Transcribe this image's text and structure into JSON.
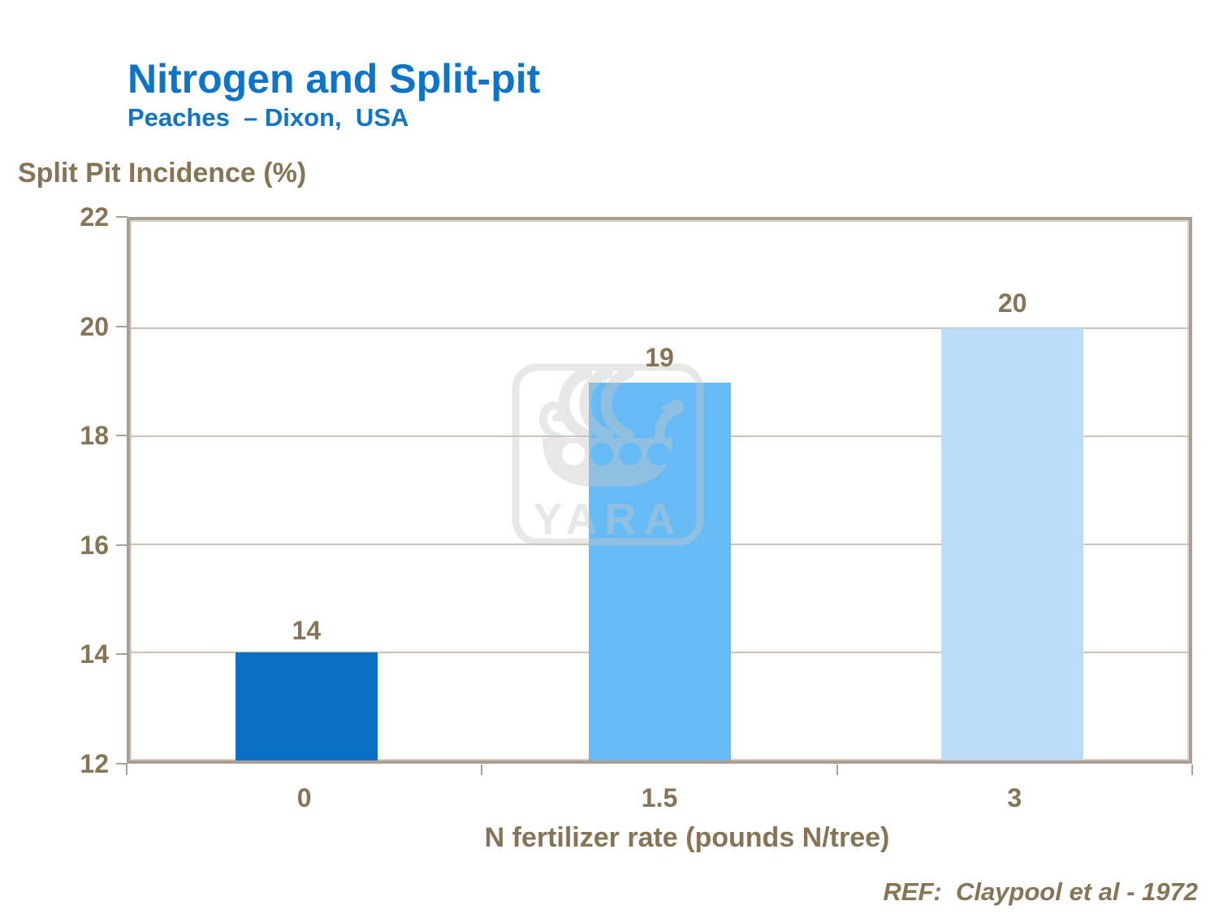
{
  "slide": {
    "title": "Nitrogen and Split-pit",
    "subtitle": "Peaches  – Dixon,  USA",
    "reference": "REF:  Claypool et al - 1972",
    "watermark_text": "YARA"
  },
  "chart_data": {
    "type": "bar",
    "title": "Nitrogen and Split-pit — Peaches, Dixon, USA",
    "ylabel": "Split Pit Incidence (%)",
    "xlabel": "N fertilizer rate (pounds N/tree)",
    "categories": [
      "0",
      "1.5",
      "3"
    ],
    "values": [
      14,
      19,
      20
    ],
    "ylim": [
      12,
      22
    ],
    "yticks": [
      12,
      14,
      16,
      18,
      20,
      22
    ],
    "grid": true,
    "legend": "none",
    "bar_colors": [
      "#0a70c6",
      "#66bbf6",
      "#b9dcf8"
    ],
    "title_color": "#0e74c8",
    "text_color": "#867457",
    "axis_color": "#a99f92",
    "grid_color": "#cbc2b4",
    "watermark_color": "#c8c8c8"
  }
}
